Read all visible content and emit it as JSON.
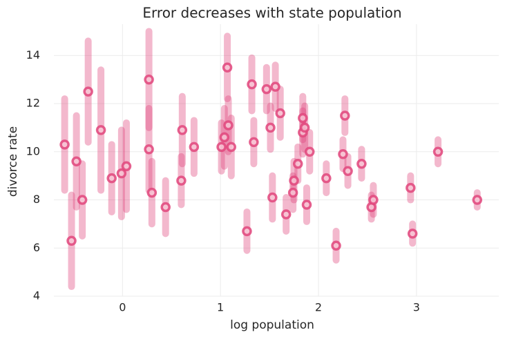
{
  "chart_data": {
    "type": "scatter",
    "title": "Error decreases with state population",
    "xlabel": "log population",
    "ylabel": "divorce rate",
    "x": [
      -0.59,
      -0.52,
      -0.47,
      -0.41,
      -0.35,
      -0.22,
      -0.11,
      -0.01,
      0.04,
      0.27,
      0.27,
      0.3,
      0.44,
      0.61,
      0.6,
      0.73,
      1.01,
      1.04,
      1.07,
      1.08,
      1.11,
      1.27,
      1.32,
      1.34,
      1.47,
      1.51,
      1.56,
      1.53,
      1.61,
      1.67,
      1.74,
      1.75,
      1.79,
      1.84,
      1.84,
      1.86,
      1.88,
      1.91,
      2.08,
      2.18,
      2.25,
      2.27,
      2.3,
      2.44,
      2.54,
      2.56,
      2.94,
      2.96,
      3.22,
      3.62
    ],
    "values": [
      10.3,
      6.3,
      9.6,
      8.0,
      12.5,
      10.9,
      8.9,
      9.1,
      9.4,
      13.0,
      10.1,
      8.3,
      7.7,
      10.9,
      8.8,
      10.2,
      10.2,
      10.6,
      13.5,
      11.1,
      10.2,
      6.7,
      12.8,
      10.4,
      12.6,
      11.0,
      12.7,
      8.1,
      11.6,
      7.4,
      8.3,
      8.8,
      9.5,
      11.4,
      10.8,
      11.0,
      7.8,
      10.0,
      8.9,
      6.1,
      9.9,
      11.5,
      9.2,
      9.5,
      7.7,
      8.0,
      8.5,
      6.6,
      10.0,
      8.0
    ],
    "errors": [
      1.9,
      1.9,
      1.9,
      1.5,
      2.1,
      2.5,
      1.4,
      1.8,
      1.8,
      2.0,
      1.7,
      1.3,
      1.1,
      1.4,
      1.0,
      1.1,
      1.0,
      1.2,
      1.3,
      1.1,
      1.2,
      0.8,
      1.1,
      0.9,
      0.9,
      0.9,
      0.9,
      0.9,
      1.0,
      0.7,
      0.7,
      0.8,
      0.7,
      0.9,
      0.9,
      0.9,
      0.7,
      0.8,
      0.6,
      0.6,
      0.6,
      0.7,
      0.6,
      0.6,
      0.5,
      0.6,
      0.5,
      0.4,
      0.5,
      0.3
    ],
    "color": "#e0457b",
    "xlim": [
      -0.7,
      3.84
    ],
    "ylim": [
      4,
      15.3
    ],
    "xticks": [
      0,
      1,
      2,
      3
    ],
    "yticks": [
      4,
      6,
      8,
      10,
      12,
      14
    ],
    "grid": true
  }
}
